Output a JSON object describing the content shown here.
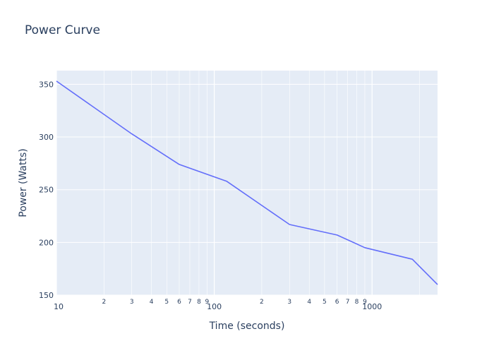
{
  "chart_data": {
    "type": "line",
    "title": "Power Curve",
    "xlabel": "Time (seconds)",
    "ylabel": "Power (Watts)",
    "x_scale": "log",
    "xlim": [
      10,
      2600
    ],
    "ylim": [
      150,
      363
    ],
    "y_ticks": [
      150,
      200,
      250,
      300,
      350
    ],
    "x_major_ticks": [
      {
        "value": 10,
        "label": "10"
      },
      {
        "value": 100,
        "label": "100"
      },
      {
        "value": 1000,
        "label": "1000"
      }
    ],
    "x_minor_ticks": [
      {
        "value": 20,
        "label": "2"
      },
      {
        "value": 30,
        "label": "3"
      },
      {
        "value": 40,
        "label": "4"
      },
      {
        "value": 50,
        "label": "5"
      },
      {
        "value": 60,
        "label": "6"
      },
      {
        "value": 70,
        "label": "7"
      },
      {
        "value": 80,
        "label": "8"
      },
      {
        "value": 90,
        "label": "9"
      },
      {
        "value": 200,
        "label": "2"
      },
      {
        "value": 300,
        "label": "3"
      },
      {
        "value": 400,
        "label": "4"
      },
      {
        "value": 500,
        "label": "5"
      },
      {
        "value": 600,
        "label": "6"
      },
      {
        "value": 700,
        "label": "7"
      },
      {
        "value": 800,
        "label": "8"
      },
      {
        "value": 900,
        "label": "9"
      },
      {
        "value": 2000,
        "label": null
      }
    ],
    "grid": true,
    "line_color": "#636efa",
    "plot_bg": "#e5ecf6",
    "series": [
      {
        "x": [
          10,
          30,
          60,
          120,
          300,
          600,
          900,
          1800,
          2600
        ],
        "y": [
          353,
          303,
          274,
          258,
          217,
          207,
          195,
          184,
          160
        ]
      }
    ]
  }
}
